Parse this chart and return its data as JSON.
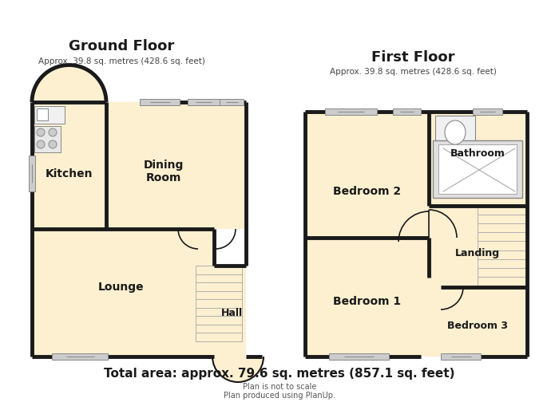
{
  "bg_color": "#ffffff",
  "wall_color": "#1a1a1a",
  "room_fill": "#fdf0d0",
  "title1": "Ground Floor",
  "subtitle1": "Approx. 39.8 sq. metres (428.6 sq. feet)",
  "title2": "First Floor",
  "subtitle2": "Approx. 39.8 sq. metres (428.6 sq. feet)",
  "footer1": "Total area: approx. 79.6 sq. metres (857.1 sq. feet)",
  "footer2": "Plan is not to scale",
  "footer3": "Plan produced using PlanUp."
}
